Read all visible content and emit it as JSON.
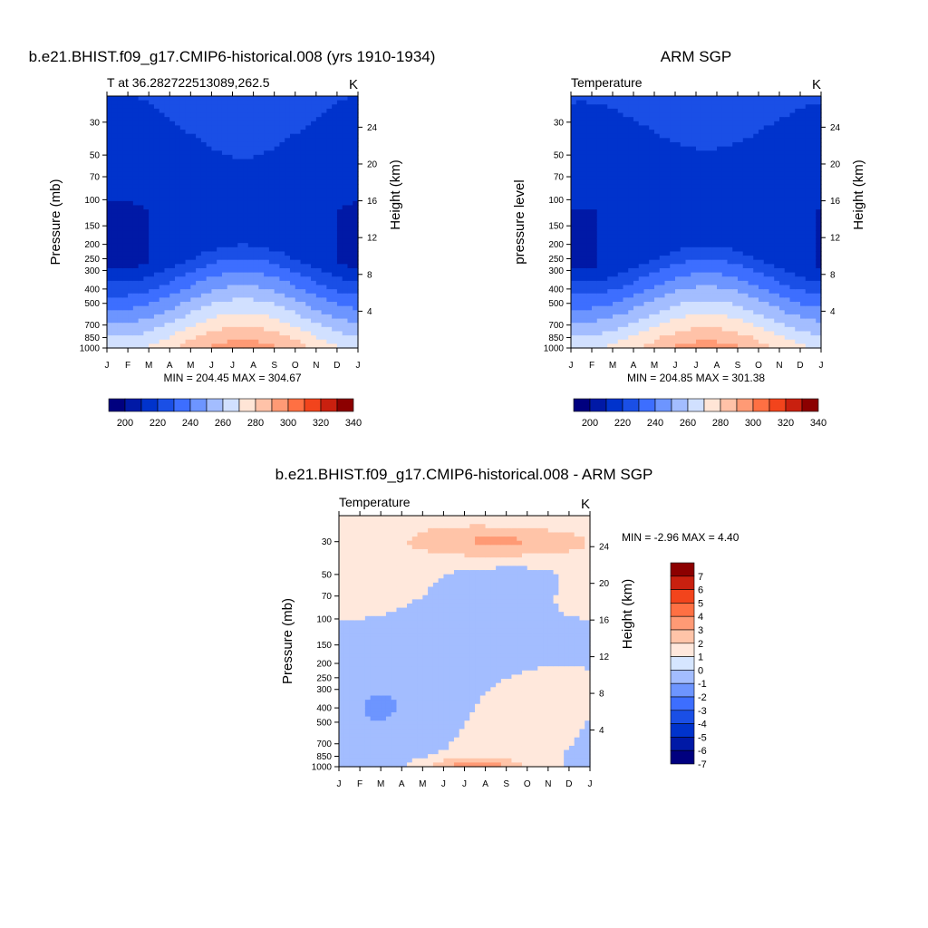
{
  "chart_data": [
    {
      "type": "heatmap",
      "title": "b.e21.BHIST.f09_g17.CMIP6-historical.008 (yrs 1910-1934)",
      "left_string": "T at 36.282722513089,262.5",
      "right_string": "K",
      "ylabel": "Pressure (mb)",
      "ylabel_right": "Height (km)",
      "x_ticks": [
        "J",
        "F",
        "M",
        "A",
        "M",
        "J",
        "J",
        "A",
        "S",
        "O",
        "N",
        "D",
        "J"
      ],
      "pressure_ticks": [
        "30",
        "50",
        "70",
        "100",
        "150",
        "200",
        "250",
        "300",
        "400",
        "500",
        "700",
        "850",
        "1000"
      ],
      "height_ticks": [
        "24",
        "20",
        "16",
        "12",
        "8",
        "4"
      ],
      "stats": "MIN = 204.45 MAX = 304.67",
      "field": "absolute",
      "shift": 0,
      "colorbar_labels": [
        "200",
        "220",
        "240",
        "260",
        "280",
        "300",
        "320",
        "340"
      ]
    },
    {
      "type": "heatmap",
      "title": "ARM SGP",
      "left_string": "Temperature",
      "right_string": "K",
      "ylabel": "pressure level",
      "ylabel_right": "Height (km)",
      "x_ticks": [
        "J",
        "F",
        "M",
        "A",
        "M",
        "J",
        "J",
        "A",
        "S",
        "O",
        "N",
        "D",
        "J"
      ],
      "pressure_ticks": [
        "30",
        "50",
        "70",
        "100",
        "150",
        "200",
        "250",
        "300",
        "400",
        "500",
        "700",
        "850",
        "1000"
      ],
      "height_ticks": [
        "24",
        "20",
        "16",
        "12",
        "8",
        "4"
      ],
      "stats": "MIN = 204.85 MAX = 301.38",
      "field": "absolute",
      "shift": -2,
      "colorbar_labels": [
        "200",
        "220",
        "240",
        "260",
        "280",
        "300",
        "320",
        "340"
      ]
    },
    {
      "type": "heatmap",
      "title": "b.e21.BHIST.f09_g17.CMIP6-historical.008 - ARM SGP",
      "left_string": "Temperature",
      "right_string": "K",
      "ylabel": "Pressure (mb)",
      "ylabel_right": "Height (km)",
      "x_ticks": [
        "J",
        "F",
        "M",
        "A",
        "M",
        "J",
        "J",
        "A",
        "S",
        "O",
        "N",
        "D",
        "J"
      ],
      "pressure_ticks": [
        "30",
        "50",
        "70",
        "100",
        "150",
        "200",
        "250",
        "300",
        "400",
        "500",
        "700",
        "850",
        "1000"
      ],
      "height_ticks": [
        "24",
        "20",
        "16",
        "12",
        "8",
        "4"
      ],
      "stats": "MIN =  -2.96 MAX =   4.40",
      "field": "difference",
      "colorbar_labels": [
        "7",
        "6",
        "5",
        "4",
        "3",
        "2",
        "1",
        "0",
        "-1",
        "-2",
        "-3",
        "-4",
        "-5",
        "-6",
        "-7"
      ]
    }
  ],
  "colors": {
    "absolute": [
      "#00007f",
      "#0019a6",
      "#0033cc",
      "#1a4fe6",
      "#3d6eff",
      "#6d95ff",
      "#a3bdff",
      "#d1e0ff",
      "#ffe5d6",
      "#ffc2a8",
      "#ff9a75",
      "#ff7043",
      "#f2441c",
      "#c9200f",
      "#8c0000"
    ],
    "difference": [
      "#00007f",
      "#0019a6",
      "#0033cc",
      "#1a4fe6",
      "#3d6eff",
      "#6d95ff",
      "#a3bdff",
      "#d6e6ff",
      "#ffe8dc",
      "#ffc4a8",
      "#ff9a75",
      "#ff7043",
      "#f2441c",
      "#c9200f",
      "#8c0000"
    ]
  }
}
